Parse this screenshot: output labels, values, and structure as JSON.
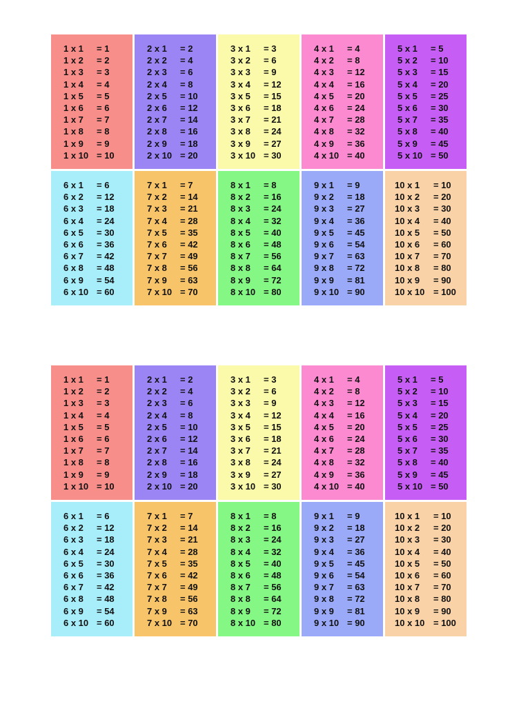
{
  "sheets": [
    {
      "tables": [
        {
          "rows": [
            [
              "1 x 1",
              "= 1"
            ],
            [
              "1 x 2",
              "= 2"
            ],
            [
              "1 x 3",
              "= 3"
            ],
            [
              "1 x 4",
              "= 4"
            ],
            [
              "1 x 5",
              "= 5"
            ],
            [
              "1 x 6",
              "= 6"
            ],
            [
              "1 x 7",
              "= 7"
            ],
            [
              "1 x 8",
              "= 8"
            ],
            [
              "1 x 9",
              "= 9"
            ],
            [
              "1 x 10",
              "= 10"
            ]
          ]
        },
        {
          "rows": [
            [
              "2 x 1",
              "= 2"
            ],
            [
              "2 x 2",
              "= 4"
            ],
            [
              "2 x 3",
              "= 6"
            ],
            [
              "2 x 4",
              "= 8"
            ],
            [
              "2 x 5",
              "= 10"
            ],
            [
              "2 x 6",
              "= 12"
            ],
            [
              "2 x 7",
              "= 14"
            ],
            [
              "2 x 8",
              "= 16"
            ],
            [
              "2 x 9",
              "= 18"
            ],
            [
              "2 x 10",
              "= 20"
            ]
          ]
        },
        {
          "rows": [
            [
              "3 x 1",
              "= 3"
            ],
            [
              "3 x 2",
              "= 6"
            ],
            [
              "3 x 3",
              "= 9"
            ],
            [
              "3 x 4",
              "= 12"
            ],
            [
              "3 x 5",
              "= 15"
            ],
            [
              "3 x 6",
              "= 18"
            ],
            [
              "3 x 7",
              "= 21"
            ],
            [
              "3 x 8",
              "= 24"
            ],
            [
              "3 x 9",
              "= 27"
            ],
            [
              "3 x 10",
              "= 30"
            ]
          ]
        },
        {
          "rows": [
            [
              "4 x 1",
              "= 4"
            ],
            [
              "4 x 2",
              "= 8"
            ],
            [
              "4 x 3",
              "= 12"
            ],
            [
              "4 x 4",
              "= 16"
            ],
            [
              "4 x 5",
              "= 20"
            ],
            [
              "4 x 6",
              "= 24"
            ],
            [
              "4 x 7",
              "= 28"
            ],
            [
              "4 x 8",
              "= 32"
            ],
            [
              "4 x 9",
              "= 36"
            ],
            [
              "4 x 10",
              "= 40"
            ]
          ]
        },
        {
          "rows": [
            [
              "5 x 1",
              "= 5"
            ],
            [
              "5 x 2",
              "= 10"
            ],
            [
              "5 x 3",
              "= 15"
            ],
            [
              "5 x 4",
              "= 20"
            ],
            [
              "5 x 5",
              "= 25"
            ],
            [
              "5 x 6",
              "= 30"
            ],
            [
              "5 x 7",
              "= 35"
            ],
            [
              "5 x 8",
              "= 40"
            ],
            [
              "5 x 9",
              "= 45"
            ],
            [
              "5 x 10",
              "= 50"
            ]
          ]
        },
        {
          "rows": [
            [
              "6 x 1",
              "= 6"
            ],
            [
              "6 x 2",
              "= 12"
            ],
            [
              "6 x 3",
              "= 18"
            ],
            [
              "6 x 4",
              "= 24"
            ],
            [
              "6 x 5",
              "= 30"
            ],
            [
              "6 x 6",
              "= 36"
            ],
            [
              "6 x 7",
              "= 42"
            ],
            [
              "6 x 8",
              "= 48"
            ],
            [
              "6 x 9",
              "= 54"
            ],
            [
              "6 x 10",
              "= 60"
            ]
          ]
        },
        {
          "rows": [
            [
              "7 x 1",
              "= 7"
            ],
            [
              "7 x 2",
              "= 14"
            ],
            [
              "7 x 3",
              "= 21"
            ],
            [
              "7 x 4",
              "= 28"
            ],
            [
              "7 x 5",
              "= 35"
            ],
            [
              "7 x 6",
              "= 42"
            ],
            [
              "7 x 7",
              "= 49"
            ],
            [
              "7 x 8",
              "= 56"
            ],
            [
              "7 x 9",
              "= 63"
            ],
            [
              "7 x 10",
              "= 70"
            ]
          ]
        },
        {
          "rows": [
            [
              "8 x 1",
              "= 8"
            ],
            [
              "8 x 2",
              "= 16"
            ],
            [
              "8 x 3",
              "= 24"
            ],
            [
              "8 x 4",
              "= 32"
            ],
            [
              "8 x 5",
              "= 40"
            ],
            [
              "8 x 6",
              "= 48"
            ],
            [
              "8 x 7",
              "= 56"
            ],
            [
              "8 x 8",
              "= 64"
            ],
            [
              "8 x 9",
              "= 72"
            ],
            [
              "8 x 10",
              "= 80"
            ]
          ]
        },
        {
          "rows": [
            [
              "9 x 1",
              "= 9"
            ],
            [
              "9 x 2",
              "= 18"
            ],
            [
              "9 x 3",
              "= 27"
            ],
            [
              "9 x 4",
              "= 36"
            ],
            [
              "9 x 5",
              "= 45"
            ],
            [
              "9 x 6",
              "= 54"
            ],
            [
              "9 x 7",
              "= 63"
            ],
            [
              "9 x 8",
              "= 72"
            ],
            [
              "9 x 9",
              "= 81"
            ],
            [
              "9 x 10",
              "= 90"
            ]
          ]
        },
        {
          "rows": [
            [
              "10 x 1",
              "= 10"
            ],
            [
              "10 x 2",
              "= 20"
            ],
            [
              "10 x 3",
              "= 30"
            ],
            [
              "10 x 4",
              "= 40"
            ],
            [
              "10 x 5",
              "= 50"
            ],
            [
              "10 x 6",
              "= 60"
            ],
            [
              "10 x 7",
              "= 70"
            ],
            [
              "10 x 8",
              "= 80"
            ],
            [
              "10 x 9",
              "= 90"
            ],
            [
              "10 x 10",
              "= 100"
            ]
          ]
        }
      ]
    },
    {
      "tables": [
        {
          "rows": [
            [
              "1 x 1",
              "= 1"
            ],
            [
              "1 x 2",
              "= 2"
            ],
            [
              "1 x 3",
              "= 3"
            ],
            [
              "1 x 4",
              "= 4"
            ],
            [
              "1 x 5",
              "= 5"
            ],
            [
              "1 x 6",
              "= 6"
            ],
            [
              "1 x 7",
              "= 7"
            ],
            [
              "1 x 8",
              "= 8"
            ],
            [
              "1 x 9",
              "= 9"
            ],
            [
              "1 x 10",
              "= 10"
            ]
          ]
        },
        {
          "rows": [
            [
              "2 x 1",
              "= 2"
            ],
            [
              "2 x 2",
              "= 4"
            ],
            [
              "2 x 3",
              "= 6"
            ],
            [
              "2 x 4",
              "= 8"
            ],
            [
              "2 x 5",
              "= 10"
            ],
            [
              "2 x 6",
              "= 12"
            ],
            [
              "2 x 7",
              "= 14"
            ],
            [
              "2 x 8",
              "= 16"
            ],
            [
              "2 x 9",
              "= 18"
            ],
            [
              "2 x 10",
              "= 20"
            ]
          ]
        },
        {
          "rows": [
            [
              "3 x 1",
              "= 3"
            ],
            [
              "3 x 2",
              "= 6"
            ],
            [
              "3 x 3",
              "= 9"
            ],
            [
              "3 x 4",
              "= 12"
            ],
            [
              "3 x 5",
              "= 15"
            ],
            [
              "3 x 6",
              "= 18"
            ],
            [
              "3 x 7",
              "= 21"
            ],
            [
              "3 x 8",
              "= 24"
            ],
            [
              "3 x 9",
              "= 27"
            ],
            [
              "3 x 10",
              "= 30"
            ]
          ]
        },
        {
          "rows": [
            [
              "4 x 1",
              "= 4"
            ],
            [
              "4 x 2",
              "= 8"
            ],
            [
              "4 x 3",
              "= 12"
            ],
            [
              "4 x 4",
              "= 16"
            ],
            [
              "4 x 5",
              "= 20"
            ],
            [
              "4 x 6",
              "= 24"
            ],
            [
              "4 x 7",
              "= 28"
            ],
            [
              "4 x 8",
              "= 32"
            ],
            [
              "4 x 9",
              "= 36"
            ],
            [
              "4 x 10",
              "= 40"
            ]
          ]
        },
        {
          "rows": [
            [
              "5 x 1",
              "= 5"
            ],
            [
              "5 x 2",
              "= 10"
            ],
            [
              "5 x 3",
              "= 15"
            ],
            [
              "5 x 4",
              "= 20"
            ],
            [
              "5 x 5",
              "= 25"
            ],
            [
              "5 x 6",
              "= 30"
            ],
            [
              "5 x 7",
              "= 35"
            ],
            [
              "5 x 8",
              "= 40"
            ],
            [
              "5 x 9",
              "= 45"
            ],
            [
              "5 x 10",
              "= 50"
            ]
          ]
        },
        {
          "rows": [
            [
              "6 x 1",
              "= 6"
            ],
            [
              "6 x 2",
              "= 12"
            ],
            [
              "6 x 3",
              "= 18"
            ],
            [
              "6 x 4",
              "= 24"
            ],
            [
              "6 x 5",
              "= 30"
            ],
            [
              "6 x 6",
              "= 36"
            ],
            [
              "6 x 7",
              "= 42"
            ],
            [
              "6 x 8",
              "= 48"
            ],
            [
              "6 x 9",
              "= 54"
            ],
            [
              "6 x 10",
              "= 60"
            ]
          ]
        },
        {
          "rows": [
            [
              "7 x 1",
              "= 7"
            ],
            [
              "7 x 2",
              "= 14"
            ],
            [
              "7 x 3",
              "= 21"
            ],
            [
              "7 x 4",
              "= 28"
            ],
            [
              "7 x 5",
              "= 35"
            ],
            [
              "7 x 6",
              "= 42"
            ],
            [
              "7 x 7",
              "= 49"
            ],
            [
              "7 x 8",
              "= 56"
            ],
            [
              "7 x 9",
              "= 63"
            ],
            [
              "7 x 10",
              "= 70"
            ]
          ]
        },
        {
          "rows": [
            [
              "8 x 1",
              "= 8"
            ],
            [
              "8 x 2",
              "= 16"
            ],
            [
              "8 x 3",
              "= 24"
            ],
            [
              "8 x 4",
              "= 32"
            ],
            [
              "8 x 5",
              "= 40"
            ],
            [
              "8 x 6",
              "= 48"
            ],
            [
              "8 x 7",
              "= 56"
            ],
            [
              "8 x 8",
              "= 64"
            ],
            [
              "8 x 9",
              "= 72"
            ],
            [
              "8 x 10",
              "= 80"
            ]
          ]
        },
        {
          "rows": [
            [
              "9 x 1",
              "= 9"
            ],
            [
              "9 x 2",
              "= 18"
            ],
            [
              "9 x 3",
              "= 27"
            ],
            [
              "9 x 4",
              "= 36"
            ],
            [
              "9 x 5",
              "= 45"
            ],
            [
              "9 x 6",
              "= 54"
            ],
            [
              "9 x 7",
              "= 63"
            ],
            [
              "9 x 8",
              "= 72"
            ],
            [
              "9 x 9",
              "= 81"
            ],
            [
              "9 x 10",
              "= 90"
            ]
          ]
        },
        {
          "rows": [
            [
              "10 x 1",
              "= 10"
            ],
            [
              "10 x 2",
              "= 20"
            ],
            [
              "10 x 3",
              "= 30"
            ],
            [
              "10 x 4",
              "= 40"
            ],
            [
              "10 x 5",
              "= 50"
            ],
            [
              "10 x 6",
              "= 60"
            ],
            [
              "10 x 7",
              "= 70"
            ],
            [
              "10 x 8",
              "= 80"
            ],
            [
              "10 x 9",
              "= 90"
            ],
            [
              "10 x 10",
              "= 100"
            ]
          ]
        }
      ]
    }
  ]
}
